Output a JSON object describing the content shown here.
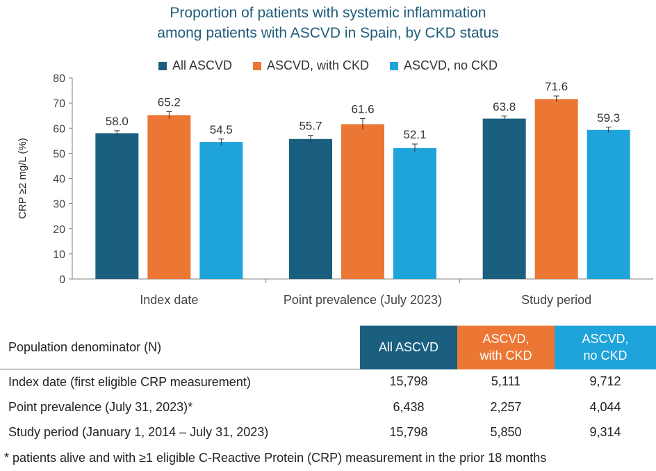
{
  "chart_data": {
    "type": "bar",
    "title": [
      "Proportion of patients with systemic inflammation",
      "among patients with ASCVD in Spain, by CKD status"
    ],
    "xlabel": "",
    "ylabel": "CRP ≥2 mg/L (%)",
    "ylim": [
      0,
      80
    ],
    "yticks": [
      0,
      10,
      20,
      30,
      40,
      50,
      60,
      70,
      80
    ],
    "categories": [
      "Index date",
      "Point prevalence (July 2023)",
      "Study period"
    ],
    "series": [
      {
        "name": "All ASCVD",
        "color": "#1a5f80",
        "values": [
          58.0,
          55.7,
          63.8
        ],
        "labels": [
          "58.0",
          "55.7",
          "63.8"
        ],
        "err": [
          1.0,
          1.4,
          1.0
        ]
      },
      {
        "name": "ASCVD, with CKD",
        "color": "#ec7734",
        "values": [
          65.2,
          61.6,
          71.6
        ],
        "labels": [
          "65.2",
          "61.6",
          "71.6"
        ],
        "err": [
          1.4,
          2.2,
          1.2
        ]
      },
      {
        "name": "ASCVD, no CKD",
        "color": "#1ea3da",
        "values": [
          54.5,
          52.1,
          59.3
        ],
        "labels": [
          "54.5",
          "52.1",
          "59.3"
        ],
        "err": [
          1.2,
          1.6,
          1.1
        ]
      }
    ],
    "legend_position": "top-center",
    "grid": false
  },
  "table": {
    "header": "Population denominator (N)",
    "columns": [
      {
        "label": "All ASCVD",
        "color": "#1a5f80"
      },
      {
        "label": "ASCVD,\nwith CKD",
        "color": "#ec7734"
      },
      {
        "label": "ASCVD,\nno CKD",
        "color": "#1ea3da"
      }
    ],
    "rows": [
      {
        "label": "Index date (first eligible CRP measurement)",
        "values": [
          "15,798",
          "5,111",
          "9,712"
        ]
      },
      {
        "label": "Point prevalence (July 31, 2023)*",
        "values": [
          "6,438",
          "2,257",
          "4,044"
        ]
      },
      {
        "label": "Study period (January 1, 2014 – July 31, 2023)",
        "values": [
          "15,798",
          "5,850",
          "9,314"
        ]
      }
    ]
  },
  "footnote": "* patients alive and with ≥1 eligible C-Reactive Protein (CRP) measurement in the prior 18 months"
}
